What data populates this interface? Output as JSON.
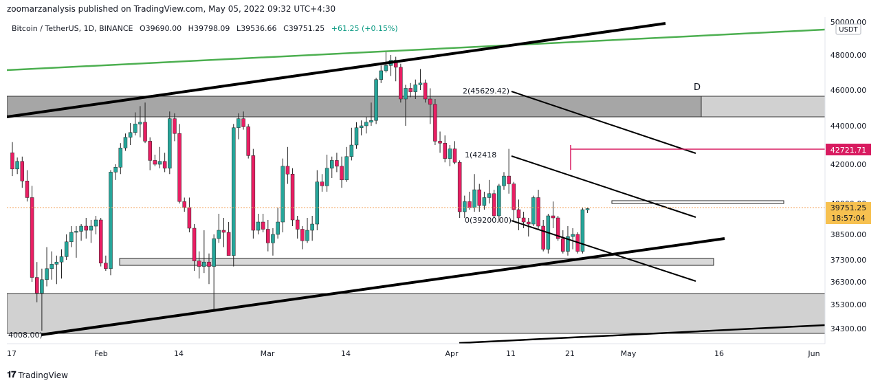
{
  "header": {
    "publisher_line": "zoomarzanalysis published on TradingView.com, May 05, 2022 09:32 UTC+4:30"
  },
  "legend": {
    "symbol": "Bitcoin / TetherUS, 1D, BINANCE",
    "open": "O39690.00",
    "high": "H39798.09",
    "low": "L39536.66",
    "close": "C39751.25",
    "change": "+61.25 (+0.15%)"
  },
  "footer": {
    "brand": "TradingView"
  },
  "colors": {
    "up": "#26a69a",
    "down": "#e91e63",
    "green_line": "#4caf50",
    "price_tag": "#f7c150",
    "pink_line": "#d81b60"
  },
  "chart_data": {
    "type": "candlestick",
    "currency_label": "USDT",
    "y_ticks": [
      50000,
      48000,
      46000,
      44000,
      42000,
      40000,
      38500,
      37300,
      36300,
      35300,
      34300
    ],
    "y_tick_labels": [
      "50000.00",
      "48000.00",
      "46000.00",
      "44000.00",
      "42000.00",
      "40000.00",
      "38500.00",
      "37300.00",
      "36300.00",
      "35300.00",
      "34300.00"
    ],
    "x_tick_labels": [
      "17",
      "Feb",
      "14",
      "Mar",
      "14",
      "Apr",
      "11",
      "21",
      "May",
      "16",
      "Jun"
    ],
    "last_price": "39751.25",
    "countdown": "18:57:04",
    "marked_level": "42721.71",
    "annotations": {
      "fib_top": "2(45629.42)",
      "fib_mid": "1(42418",
      "fib_bottom": "0(39200.00)",
      "left_low": "4008.00)",
      "pattern_point": "D"
    },
    "candles": [
      [
        42600,
        43150,
        41400,
        41760
      ],
      [
        41760,
        42350,
        41500,
        42150
      ],
      [
        42150,
        42400,
        40800,
        41150
      ],
      [
        41150,
        41700,
        40100,
        40300
      ],
      [
        40300,
        40900,
        36300,
        36500
      ],
      [
        36500,
        37200,
        35400,
        35800
      ],
      [
        35800,
        36900,
        34200,
        36400
      ],
      [
        36400,
        37900,
        36100,
        36900
      ],
      [
        36900,
        37700,
        36400,
        37100
      ],
      [
        37100,
        37500,
        36200,
        37200
      ],
      [
        37200,
        37800,
        36450,
        37450
      ],
      [
        37450,
        38500,
        37300,
        38150
      ],
      [
        38150,
        38900,
        37900,
        38600
      ],
      [
        38600,
        38900,
        37400,
        38650
      ],
      [
        38650,
        39000,
        38200,
        38900
      ],
      [
        38900,
        39300,
        38300,
        38700
      ],
      [
        38700,
        39200,
        38100,
        38900
      ],
      [
        38900,
        39400,
        38500,
        39200
      ],
      [
        39200,
        39300,
        37000,
        37150
      ],
      [
        37150,
        37500,
        36800,
        36900
      ],
      [
        36900,
        41700,
        36600,
        41600
      ],
      [
        41600,
        42000,
        41200,
        41850
      ],
      [
        41850,
        43100,
        41500,
        42850
      ],
      [
        42850,
        43600,
        42700,
        43400
      ],
      [
        43400,
        44150,
        43000,
        43650
      ],
      [
        43650,
        44750,
        43500,
        44100
      ],
      [
        44100,
        45100,
        43400,
        44200
      ],
      [
        44200,
        45300,
        43100,
        43200
      ],
      [
        43200,
        43400,
        41700,
        42200
      ],
      [
        42200,
        42500,
        41900,
        42000
      ],
      [
        42000,
        42900,
        41800,
        42150
      ],
      [
        42150,
        42600,
        41600,
        41800
      ],
      [
        41800,
        44800,
        41500,
        44400
      ],
      [
        44400,
        44700,
        43200,
        43600
      ],
      [
        43600,
        44100,
        40000,
        40100
      ],
      [
        40100,
        40300,
        39600,
        39800
      ],
      [
        39800,
        40300,
        38600,
        38800
      ],
      [
        38800,
        39000,
        36800,
        37250
      ],
      [
        37250,
        37700,
        36450,
        37000
      ],
      [
        37000,
        38700,
        36700,
        37200
      ],
      [
        37200,
        37600,
        36200,
        37000
      ],
      [
        37000,
        38500,
        35000,
        38300
      ],
      [
        38300,
        39500,
        38100,
        38700
      ],
      [
        38700,
        39300,
        37900,
        38600
      ],
      [
        38600,
        39100,
        37500,
        37500
      ],
      [
        37500,
        44100,
        37000,
        43900
      ],
      [
        43900,
        44700,
        43300,
        44400
      ],
      [
        44400,
        44800,
        43800,
        43950
      ],
      [
        43950,
        44100,
        42300,
        42450
      ],
      [
        42450,
        42800,
        38300,
        38700
      ],
      [
        38700,
        39500,
        38500,
        39100
      ],
      [
        39100,
        39500,
        38600,
        38750
      ],
      [
        38750,
        39200,
        37700,
        38100
      ],
      [
        38100,
        38800,
        37500,
        38500
      ],
      [
        38500,
        39800,
        38300,
        39100
      ],
      [
        39100,
        42300,
        38600,
        41900
      ],
      [
        41900,
        42900,
        41000,
        41500
      ],
      [
        41500,
        41800,
        38900,
        39200
      ],
      [
        39200,
        39400,
        38300,
        38750
      ],
      [
        38750,
        38900,
        37800,
        38200
      ],
      [
        38200,
        39300,
        38100,
        38700
      ],
      [
        38700,
        39400,
        38200,
        39000
      ],
      [
        39000,
        41700,
        38700,
        41100
      ],
      [
        41100,
        41500,
        40600,
        40900
      ],
      [
        40900,
        42500,
        40600,
        41800
      ],
      [
        41800,
        42400,
        41300,
        42200
      ],
      [
        42200,
        42600,
        41600,
        41900
      ],
      [
        41900,
        42400,
        40800,
        41200
      ],
      [
        41200,
        42900,
        41100,
        42400
      ],
      [
        42400,
        43900,
        42200,
        43000
      ],
      [
        43000,
        44200,
        42800,
        43900
      ],
      [
        43900,
        44300,
        43500,
        44000
      ],
      [
        44000,
        44500,
        43600,
        44200
      ],
      [
        44200,
        45300,
        44000,
        44300
      ],
      [
        44300,
        46700,
        44100,
        46600
      ],
      [
        46600,
        47400,
        46400,
        47100
      ],
      [
        47100,
        48200,
        47000,
        47400
      ],
      [
        47400,
        48000,
        46800,
        47700
      ],
      [
        47700,
        47900,
        46500,
        47300
      ],
      [
        47300,
        47500,
        45300,
        45500
      ],
      [
        45500,
        46300,
        44000,
        46100
      ],
      [
        46100,
        46400,
        45600,
        45900
      ],
      [
        45900,
        46600,
        45500,
        46300
      ],
      [
        46300,
        47200,
        46000,
        46400
      ],
      [
        46400,
        46600,
        45300,
        45500
      ],
      [
        45500,
        46100,
        44100,
        45200
      ],
      [
        45200,
        45500,
        43000,
        43200
      ],
      [
        43200,
        43700,
        42600,
        43100
      ],
      [
        43100,
        43500,
        42100,
        42300
      ],
      [
        42300,
        43000,
        41900,
        42800
      ],
      [
        42800,
        43200,
        42000,
        42100
      ],
      [
        42100,
        42200,
        39300,
        39600
      ],
      [
        39600,
        40400,
        39300,
        40100
      ],
      [
        40100,
        40600,
        39700,
        39800
      ],
      [
        39800,
        41500,
        39600,
        40700
      ],
      [
        40700,
        41000,
        39600,
        39900
      ],
      [
        39900,
        40600,
        39700,
        40300
      ],
      [
        40300,
        41200,
        40000,
        40500
      ],
      [
        40500,
        40700,
        39300,
        39400
      ],
      [
        39400,
        41000,
        39100,
        40900
      ],
      [
        40900,
        41600,
        40700,
        41400
      ],
      [
        41400,
        42800,
        40500,
        41000
      ],
      [
        41000,
        41100,
        39100,
        39700
      ],
      [
        39700,
        40200,
        38700,
        39300
      ],
      [
        39300,
        39600,
        38800,
        39100
      ],
      [
        39100,
        39300,
        38400,
        39000
      ],
      [
        39000,
        40400,
        38900,
        40300
      ],
      [
        40300,
        40700,
        38700,
        38900
      ],
      [
        38900,
        39200,
        37700,
        37800
      ],
      [
        37800,
        39500,
        37600,
        39400
      ],
      [
        39400,
        40100,
        38800,
        39300
      ],
      [
        39300,
        39400,
        38200,
        38300
      ],
      [
        38300,
        38700,
        37600,
        37700
      ],
      [
        37700,
        38900,
        37500,
        38400
      ],
      [
        38400,
        38800,
        37800,
        38500
      ],
      [
        38500,
        38600,
        37600,
        37700
      ],
      [
        37700,
        39800,
        37600,
        39700
      ],
      [
        39690,
        39798,
        39536,
        39751
      ]
    ]
  }
}
